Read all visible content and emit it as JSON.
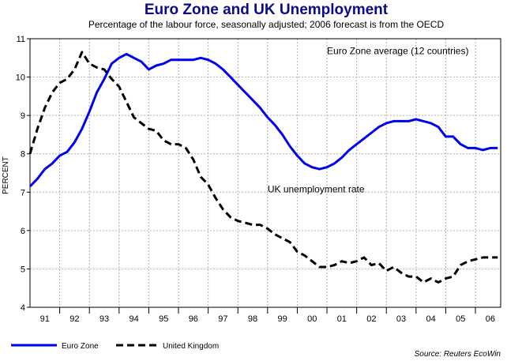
{
  "chart_data": {
    "type": "line",
    "title": "Euro Zone and UK Unemployment",
    "subtitle": "Percentage of the labour force, seasonally adjusted; 2006 forecast is from the OECD",
    "ylabel": "PERCENT",
    "xlabel": "",
    "ylim": [
      4,
      11
    ],
    "xlim": [
      1991,
      2006.85
    ],
    "grid": true,
    "yticks": [
      4,
      5,
      6,
      7,
      8,
      9,
      10,
      11
    ],
    "xtick_labels": [
      "91",
      "92",
      "93",
      "94",
      "95",
      "96",
      "97",
      "98",
      "99",
      "00",
      "01",
      "02",
      "03",
      "04",
      "05",
      "06"
    ],
    "series": [
      {
        "name": "Euro Zone",
        "color": "#0000ee",
        "style": "solid",
        "x": [
          1991.0,
          1991.25,
          1991.5,
          1991.75,
          1992.0,
          1992.25,
          1992.5,
          1992.75,
          1993.0,
          1993.25,
          1993.5,
          1993.75,
          1994.0,
          1994.25,
          1994.5,
          1994.75,
          1995.0,
          1995.25,
          1995.5,
          1995.75,
          1996.0,
          1996.25,
          1996.5,
          1996.75,
          1997.0,
          1997.25,
          1997.5,
          1997.75,
          1998.0,
          1998.25,
          1998.5,
          1998.75,
          1999.0,
          1999.25,
          1999.5,
          1999.75,
          2000.0,
          2000.25,
          2000.5,
          2000.75,
          2001.0,
          2001.25,
          2001.5,
          2001.75,
          2002.0,
          2002.25,
          2002.5,
          2002.75,
          2003.0,
          2003.25,
          2003.5,
          2003.75,
          2004.0,
          2004.25,
          2004.5,
          2004.75,
          2005.0,
          2005.25,
          2005.5,
          2005.75,
          2006.0,
          2006.25,
          2006.5,
          2006.75
        ],
        "y": [
          7.15,
          7.35,
          7.6,
          7.75,
          7.95,
          8.05,
          8.3,
          8.65,
          9.1,
          9.6,
          9.95,
          10.35,
          10.5,
          10.6,
          10.5,
          10.4,
          10.2,
          10.3,
          10.35,
          10.45,
          10.45,
          10.45,
          10.45,
          10.5,
          10.45,
          10.35,
          10.2,
          10.0,
          9.8,
          9.6,
          9.4,
          9.2,
          8.95,
          8.75,
          8.5,
          8.2,
          7.95,
          7.75,
          7.65,
          7.6,
          7.65,
          7.75,
          7.9,
          8.1,
          8.25,
          8.4,
          8.55,
          8.7,
          8.8,
          8.85,
          8.85,
          8.85,
          8.9,
          8.85,
          8.8,
          8.7,
          8.45,
          8.45,
          8.25,
          8.15,
          8.15,
          8.1,
          8.15,
          8.15
        ]
      },
      {
        "name": "United Kingdom",
        "color": "#000000",
        "style": "dashed",
        "x": [
          1991.0,
          1991.25,
          1991.5,
          1991.75,
          1992.0,
          1992.25,
          1992.5,
          1992.75,
          1993.0,
          1993.25,
          1993.5,
          1993.75,
          1994.0,
          1994.25,
          1994.5,
          1994.75,
          1995.0,
          1995.25,
          1995.5,
          1995.75,
          1996.0,
          1996.25,
          1996.5,
          1996.75,
          1997.0,
          1997.25,
          1997.5,
          1997.75,
          1998.0,
          1998.25,
          1998.5,
          1998.75,
          1999.0,
          1999.25,
          1999.5,
          1999.75,
          2000.0,
          2000.25,
          2000.5,
          2000.75,
          2001.0,
          2001.25,
          2001.5,
          2001.75,
          2002.0,
          2002.25,
          2002.5,
          2002.75,
          2003.0,
          2003.25,
          2003.5,
          2003.75,
          2004.0,
          2004.25,
          2004.5,
          2004.75,
          2005.0,
          2005.25,
          2005.5,
          2005.75,
          2006.0,
          2006.25,
          2006.5,
          2006.75
        ],
        "y": [
          8.0,
          8.65,
          9.2,
          9.6,
          9.85,
          9.95,
          10.2,
          10.65,
          10.35,
          10.25,
          10.2,
          9.95,
          9.75,
          9.35,
          8.95,
          8.8,
          8.65,
          8.6,
          8.35,
          8.25,
          8.25,
          8.15,
          7.85,
          7.4,
          7.2,
          6.85,
          6.55,
          6.35,
          6.25,
          6.2,
          6.15,
          6.15,
          6.05,
          5.9,
          5.8,
          5.7,
          5.45,
          5.35,
          5.2,
          5.05,
          5.05,
          5.1,
          5.2,
          5.15,
          5.2,
          5.3,
          5.1,
          5.15,
          4.95,
          5.05,
          4.9,
          4.8,
          4.8,
          4.65,
          4.75,
          4.65,
          4.75,
          4.8,
          5.1,
          5.2,
          5.25,
          5.3,
          5.3,
          5.3
        ]
      }
    ],
    "annotations": [
      {
        "text": "Euro Zone average (12 countries)",
        "x": 2001.0,
        "y": 10.6
      },
      {
        "text": "UK unemployment rate",
        "x": 1999.0,
        "y": 7.0
      }
    ],
    "legend_position": "bottom-left",
    "source": "Source: Reuters EcoWin"
  }
}
